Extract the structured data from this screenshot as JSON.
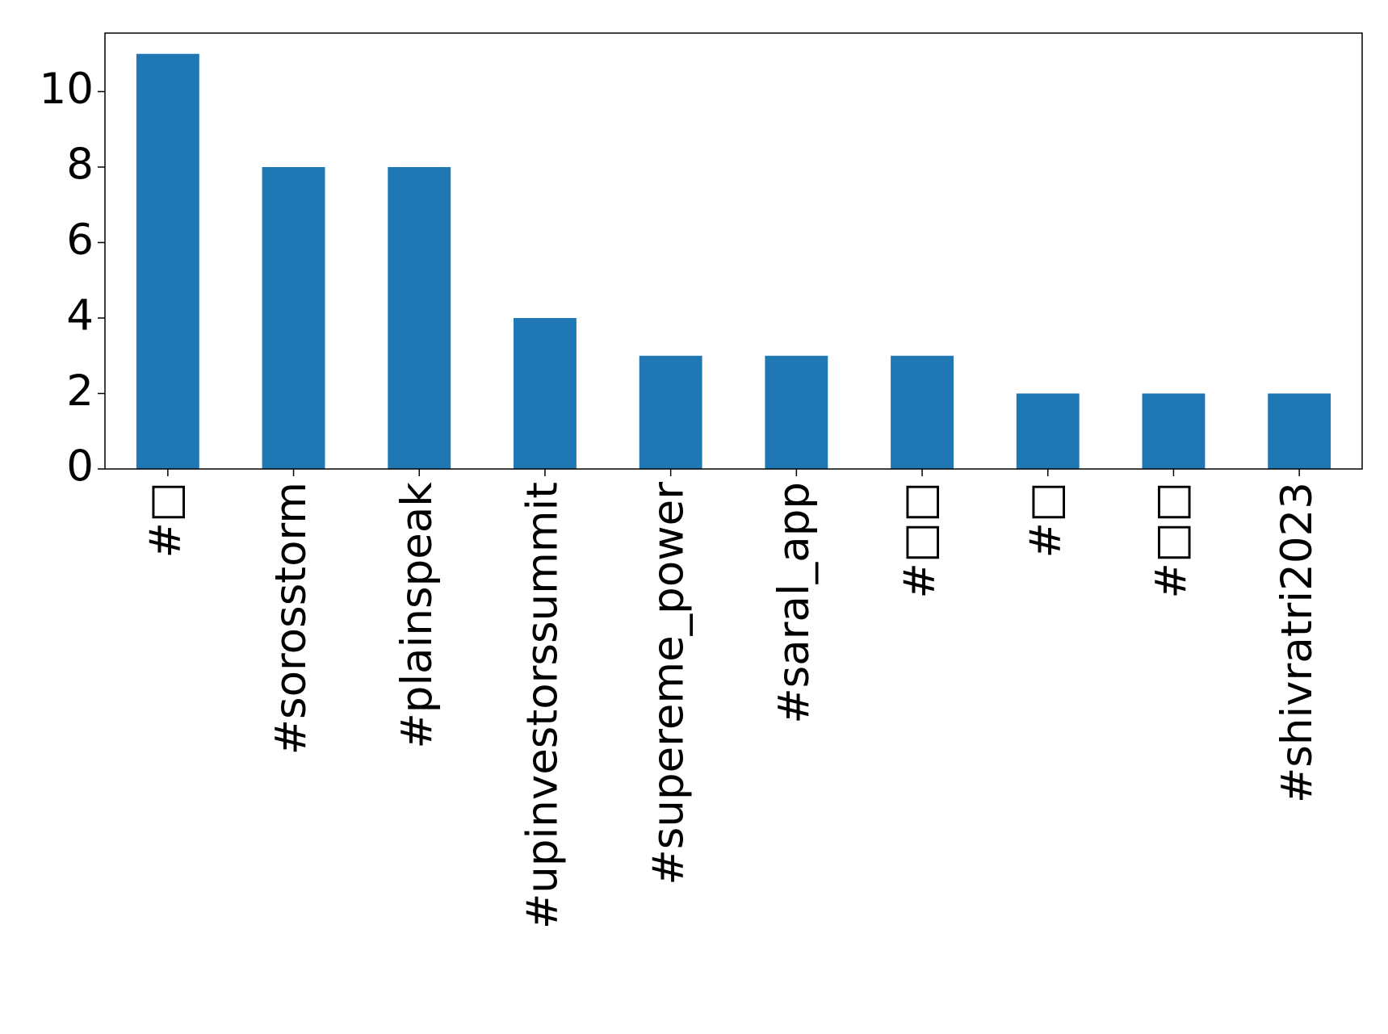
{
  "chart_data": {
    "type": "bar",
    "categories": [
      "#□",
      "#sorosstorm",
      "#plainspeak",
      "#upinvestorssummit",
      "#supereme_power",
      "#saral_app",
      "#□□",
      "#□",
      "#□□",
      "#shivratri2023"
    ],
    "values": [
      11,
      8,
      8,
      4,
      3,
      3,
      3,
      2,
      2,
      2
    ],
    "color": "#1f77b4",
    "ylim": [
      0,
      11.55
    ],
    "yticks": [
      0,
      2,
      4,
      6,
      8,
      10
    ],
    "grid": false
  }
}
